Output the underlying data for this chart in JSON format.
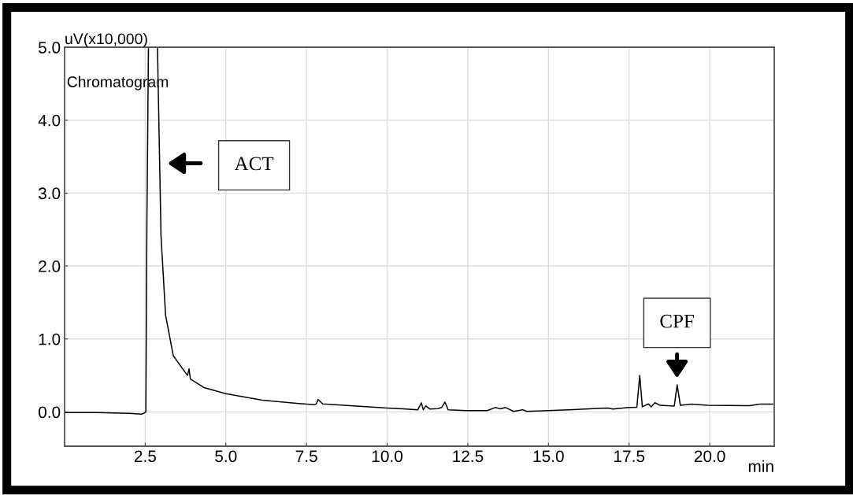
{
  "chart_data": {
    "type": "line",
    "ylabel": "uV(x10,000)",
    "xlabel": "min",
    "series": [
      {
        "color": "#000000",
        "x": [
          0,
          1.0,
          2.0,
          2.39,
          2.45,
          2.52,
          2.55,
          2.6,
          2.88,
          2.99,
          3.13,
          3.37,
          3.81,
          3.86,
          3.9,
          4.34,
          5.0,
          6.13,
          7.26,
          7.75,
          7.8,
          7.86,
          8.0,
          10.0,
          10.95,
          11.06,
          11.12,
          11.2,
          11.32,
          11.57,
          11.69,
          11.79,
          11.89,
          12.46,
          13.1,
          13.35,
          13.51,
          13.67,
          13.92,
          14.2,
          14.33,
          15.63,
          16.27,
          16.84,
          17.0,
          17.5,
          17.74,
          17.83,
          17.91,
          18.1,
          18.18,
          18.3,
          18.46,
          18.9,
          18.99,
          19.09,
          19.44,
          19.93,
          21.23,
          21.55,
          21.95
        ],
        "values": [
          -0.01,
          -0.01,
          -0.02,
          -0.03,
          -0.02,
          0.0,
          2.5,
          5.0,
          5.0,
          2.41,
          1.33,
          0.77,
          0.5,
          0.59,
          0.45,
          0.33,
          0.25,
          0.16,
          0.115,
          0.1,
          0.11,
          0.17,
          0.11,
          0.054,
          0.03,
          0.125,
          0.03,
          0.083,
          0.04,
          0.045,
          0.06,
          0.136,
          0.03,
          0.018,
          0.018,
          0.06,
          0.043,
          0.06,
          0.007,
          0.03,
          0.007,
          0.03,
          0.043,
          0.054,
          0.04,
          0.06,
          0.065,
          0.5,
          0.07,
          0.11,
          0.07,
          0.126,
          0.09,
          0.08,
          0.37,
          0.09,
          0.108,
          0.09,
          0.086,
          0.108,
          0.108
        ]
      }
    ],
    "xlim": [
      0,
      22
    ],
    "ylim": [
      -0.47,
      5.0
    ],
    "xticks": [
      {
        "value": 2.5,
        "label": "2.5"
      },
      {
        "value": 5,
        "label": "5.0"
      },
      {
        "value": 7.5,
        "label": "7.5"
      },
      {
        "value": 10,
        "label": "10.0"
      },
      {
        "value": 12.5,
        "label": "12.5"
      },
      {
        "value": 15,
        "label": "15.0"
      },
      {
        "value": 17.5,
        "label": "17.5"
      },
      {
        "value": 20,
        "label": "20.0"
      }
    ],
    "yticks": [
      {
        "value": 0,
        "label": "0.0"
      },
      {
        "value": 1,
        "label": "1.0"
      },
      {
        "value": 2,
        "label": "2.0"
      },
      {
        "value": 3,
        "label": "3.0"
      },
      {
        "value": 4,
        "label": "4.0"
      },
      {
        "value": 5,
        "label": "5.0"
      }
    ],
    "grid": true,
    "legend": false,
    "annotations": [
      "Chromatogram",
      "ACT",
      "CPF"
    ]
  }
}
